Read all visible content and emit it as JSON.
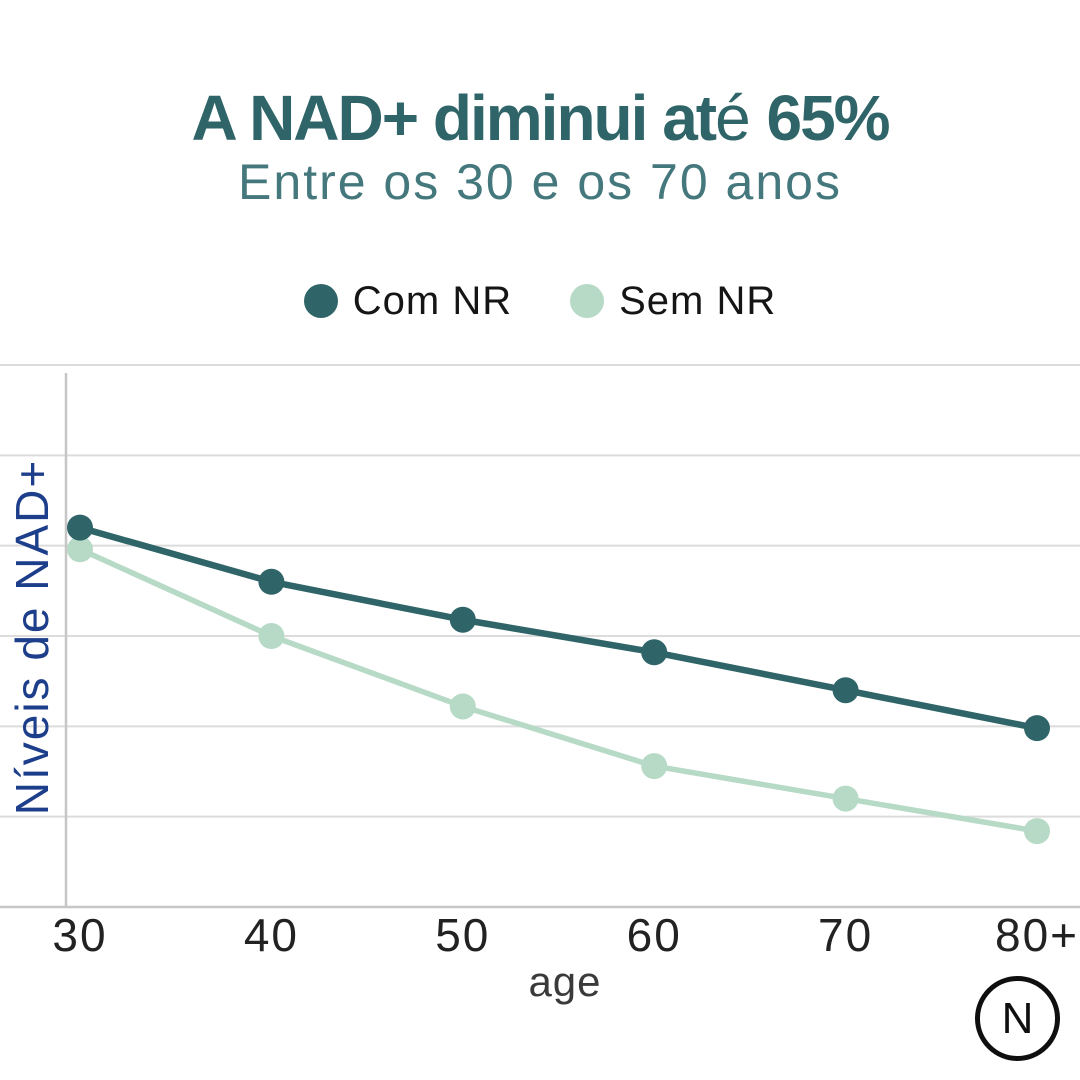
{
  "header": {
    "title_pre": "A NAD+ diminui at",
    "title_accent": "é",
    "title_post": " 65%",
    "subtitle": "Entre os 30 e os 70 anos"
  },
  "legend": {
    "items": [
      {
        "label": "Com NR",
        "color": "#2f6468"
      },
      {
        "label": "Sem NR",
        "color": "#b6dac5"
      }
    ]
  },
  "chart_data": {
    "type": "line",
    "title": "A NAD+ diminui até 65%",
    "subtitle": "Entre os 30 e os 70 anos",
    "categories": [
      "30",
      "40",
      "50",
      "60",
      "70",
      "80+"
    ],
    "series": [
      {
        "name": "Com NR",
        "color": "#2f6468",
        "line_width": 6.5,
        "point_radius": 13,
        "values": [
          70,
          60,
          53,
          47,
          40,
          33
        ]
      },
      {
        "name": "Sem NR",
        "color": "#b6dac5",
        "line_width": 5.5,
        "point_radius": 13,
        "values": [
          66,
          50,
          37,
          26,
          20,
          14
        ]
      }
    ],
    "xlabel": "age",
    "ylabel": "Níveis de NAD+",
    "ylim": [
      0,
      100
    ],
    "y_tick_labels_visible": false,
    "horizontal_gridlines": 6,
    "grid_color": "#dcdcdc",
    "axis_color": "#c6c6c6",
    "legend_position": "top"
  },
  "logo": {
    "letter": "N"
  }
}
